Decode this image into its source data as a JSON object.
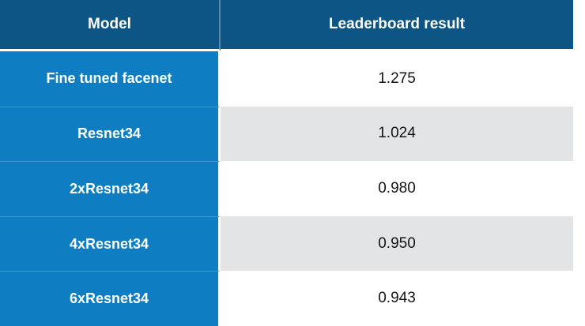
{
  "chart_data": {
    "type": "table",
    "title": "",
    "columns": [
      "Model",
      "Leaderboard result"
    ],
    "rows": [
      {
        "model": "Fine tuned facenet",
        "result": "1.275"
      },
      {
        "model": "Resnet34",
        "result": "1.024"
      },
      {
        "model": "2xResnet34",
        "result": "0.980"
      },
      {
        "model": "4xResnet34",
        "result": "0.950"
      },
      {
        "model": "6xResnet34",
        "result": "0.943"
      }
    ],
    "layout_hints": {
      "header_position": "top",
      "alternating_row_shading": true,
      "model_column_highlighted": true
    }
  },
  "table": {
    "columns": [
      {
        "label": "Model"
      },
      {
        "label": "Leaderboard result"
      }
    ],
    "rows": [
      {
        "model": "Fine tuned facenet",
        "result": "1.275"
      },
      {
        "model": "Resnet34",
        "result": "1.024"
      },
      {
        "model": "2xResnet34",
        "result": "0.980"
      },
      {
        "model": "4xResnet34",
        "result": "0.950"
      },
      {
        "model": "6xResnet34",
        "result": "0.943"
      }
    ],
    "colors": {
      "header_bg": "#0d5584",
      "model_col_bg": "#0e7dc2",
      "row_alt_bg": "#e3e4e6",
      "row_bg": "#ffffff",
      "header_text": "#ffffff",
      "value_text": "#141414"
    }
  }
}
